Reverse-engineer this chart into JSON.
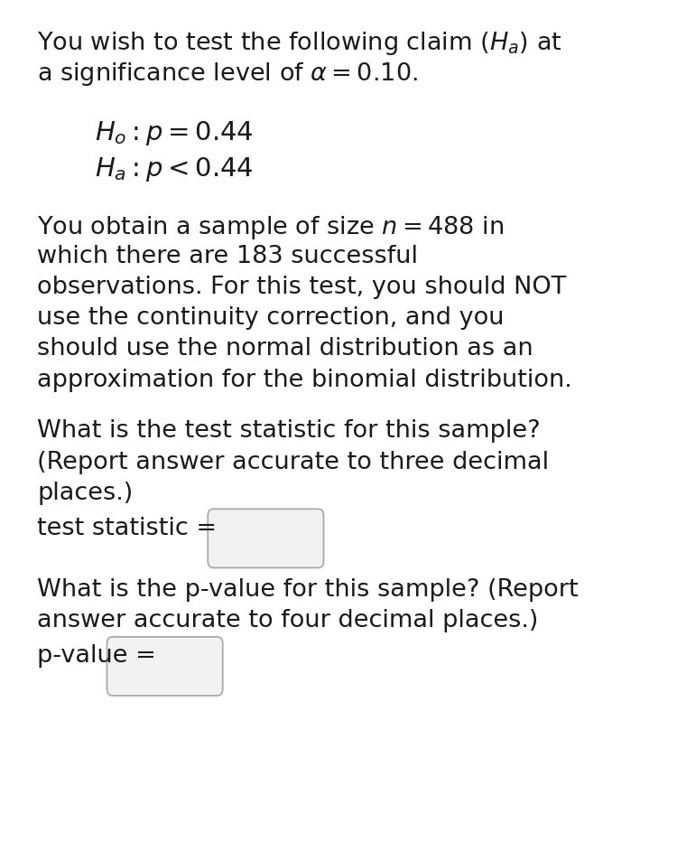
{
  "bg_color": "#ffffff",
  "text_color": "#1a1a1a",
  "font_size_main": 19.5,
  "font_size_hypothesis": 21,
  "line1": "You wish to test the following claim ($H_a$) at",
  "line2": "a significance level of $\\alpha = 0.10$.",
  "hyp1": "$H_o : p = 0.44$",
  "hyp2": "$H_a : p < 0.44$",
  "para1_lines": [
    "You obtain a sample of size $n = 488$ in",
    "which there are 183 successful",
    "observations. For this test, you should NOT",
    "use the continuity correction, and you",
    "should use the normal distribution as an",
    "approximation for the binomial distribution."
  ],
  "para2_lines": [
    "What is the test statistic for this sample?",
    "(Report answer accurate to three decimal",
    "places.)"
  ],
  "box1_label": "test statistic =",
  "para3_lines": [
    "What is the p-value for this sample? (Report",
    "answer accurate to four decimal places.)"
  ],
  "box2_label": "p-value ="
}
